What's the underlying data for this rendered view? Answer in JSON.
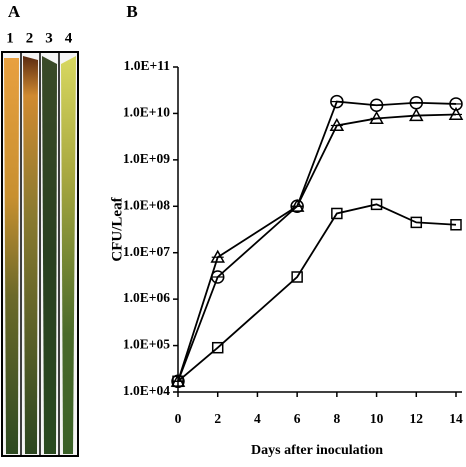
{
  "panel_a": {
    "label": "A",
    "lanes": [
      "1",
      "2",
      "3",
      "4"
    ]
  },
  "chart_data": {
    "type": "line",
    "panel_label": "B",
    "xlabel": "Days after inoculation",
    "ylabel": "CFU/Leaf",
    "x": [
      0,
      2,
      6,
      8,
      10,
      12,
      14
    ],
    "log_y": true,
    "xlim": [
      0,
      14
    ],
    "xticks": [
      0,
      2,
      4,
      6,
      8,
      10,
      12,
      14
    ],
    "ylim": [
      10000,
      100000000000
    ],
    "yticks": [
      {
        "value": 10000,
        "label": "1.0E+04"
      },
      {
        "value": 100000,
        "label": "1.0E+05"
      },
      {
        "value": 1000000,
        "label": "1.0E+06"
      },
      {
        "value": 10000000,
        "label": "1.0E+07"
      },
      {
        "value": 100000000,
        "label": "1.0E+08"
      },
      {
        "value": 1000000000,
        "label": "1.0E+09"
      },
      {
        "value": 10000000000,
        "label": "1.0E+10"
      },
      {
        "value": 100000000000,
        "label": "1.0E+11"
      }
    ],
    "series": [
      {
        "marker": "circle",
        "color": "#000000",
        "values": [
          17000,
          3000000,
          100000000,
          18000000000,
          15000000000,
          17000000000,
          16000000000
        ]
      },
      {
        "marker": "triangle",
        "color": "#000000",
        "values": [
          17000,
          8000000,
          100000000,
          5500000000,
          7800000000,
          9000000000,
          9500000000
        ]
      },
      {
        "marker": "square",
        "color": "#000000",
        "values": [
          17000,
          90000,
          3000000,
          70000000,
          110000000,
          45000000,
          40000000
        ]
      }
    ]
  }
}
